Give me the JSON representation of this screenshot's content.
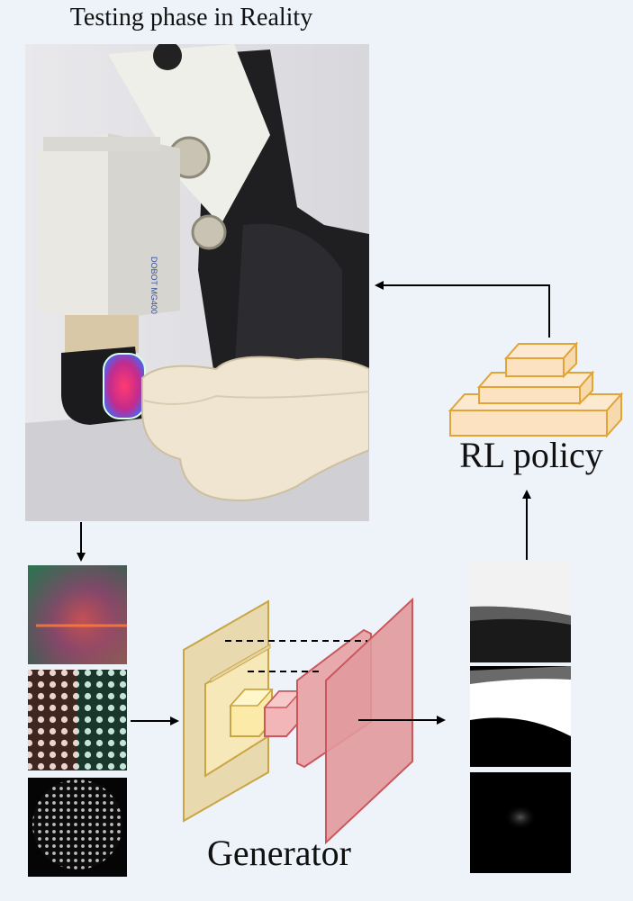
{
  "title": "Testing phase in Reality",
  "photo": {
    "device_label": "DOBOT MG400"
  },
  "rl_policy": {
    "label": "RL policy"
  },
  "generator": {
    "label": "Generator"
  },
  "colors": {
    "background": "#eef3fa",
    "policy_fill": "#fde2c1",
    "policy_stroke": "#e1a437",
    "encoder_fill": "#e7d3a1",
    "encoder_stroke": "#c9a544",
    "decoder_fill": "#e8a9ac",
    "decoder_stroke": "#c9575c",
    "arrow": "#000000"
  }
}
